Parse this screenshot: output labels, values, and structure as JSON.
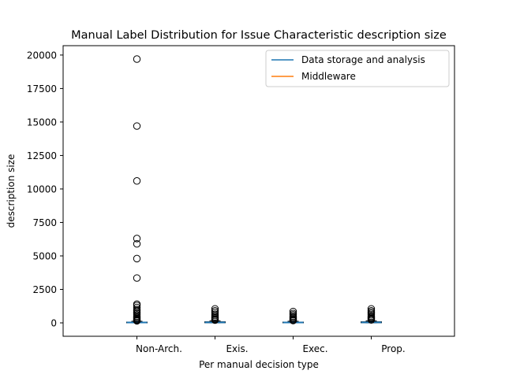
{
  "chart_data": {
    "type": "box",
    "title": "Manual Label Distribution for Issue Characteristic description size",
    "xlabel": "Per manual decision type",
    "ylabel": "description size",
    "categories": [
      "Non-Arch.",
      "Exis.",
      "Exec.",
      "Prop."
    ],
    "ylim": [
      -1000,
      20700
    ],
    "yticks": [
      0,
      2500,
      5000,
      7500,
      10000,
      12500,
      15000,
      17500,
      20000
    ],
    "ytick_labels": [
      "0",
      "2500",
      "5000",
      "7500",
      "10000",
      "12500",
      "15000",
      "17500",
      "20000"
    ],
    "grid": false,
    "legend_position": "top-right",
    "legend": [
      {
        "label": "Data storage and analysis",
        "color": "#1f77b4"
      },
      {
        "label": "Middleware",
        "color": "#ff7f0e"
      }
    ],
    "series": [
      {
        "name": "Data storage and analysis",
        "color": "#1f77b4",
        "boxes": [
          {
            "category": "Non-Arch.",
            "q1": 10,
            "median": 30,
            "q3": 60,
            "whisker_low": 0,
            "whisker_high": 120,
            "outliers": [
              19700,
              14700,
              10600,
              6300,
              5900,
              4800,
              3350,
              1400,
              1300,
              1150,
              1000,
              900,
              800,
              700,
              600,
              500,
              420,
              350,
              280,
              220,
              180,
              150
            ]
          },
          {
            "category": "Exis.",
            "q1": 10,
            "median": 40,
            "q3": 80,
            "whisker_low": 0,
            "whisker_high": 150,
            "outliers": [
              1050,
              900,
              780,
              650,
              550,
              450,
              380,
              300,
              250,
              200
            ]
          },
          {
            "category": "Exec.",
            "q1": 10,
            "median": 30,
            "q3": 60,
            "whisker_low": 0,
            "whisker_high": 120,
            "outliers": [
              850,
              700,
              600,
              500,
              420,
              350,
              280,
              220,
              170
            ]
          },
          {
            "category": "Prop.",
            "q1": 10,
            "median": 40,
            "q3": 80,
            "whisker_low": 0,
            "whisker_high": 150,
            "outliers": [
              1050,
              900,
              800,
              700,
              600,
              500,
              420,
              350,
              280,
              220
            ]
          }
        ]
      }
    ]
  }
}
